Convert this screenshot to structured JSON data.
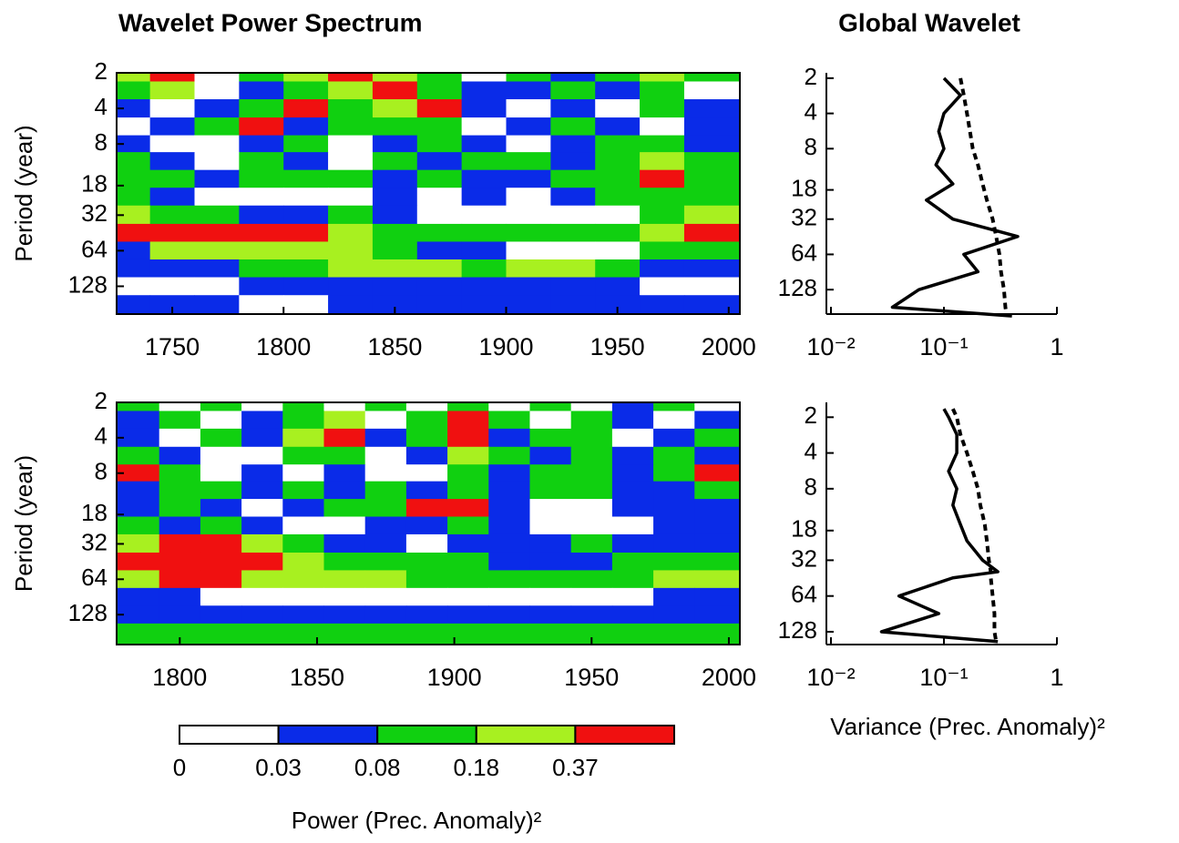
{
  "chart_data": [
    {
      "type": "heatmap",
      "title": "Wavelet Power Spectrum",
      "y_label": "Period (year)",
      "x": [
        1730,
        1750,
        1770,
        1790,
        1810,
        1830,
        1850,
        1870,
        1890,
        1910,
        1930,
        1950,
        1970,
        1990
      ],
      "y": [
        2,
        2.8,
        4,
        5.7,
        8,
        11,
        16,
        22,
        32,
        45,
        64,
        90,
        128,
        181
      ],
      "z": [
        [
          0.25,
          0.5,
          0.01,
          0.12,
          0.25,
          0.5,
          0.25,
          0.12,
          0.01,
          0.12,
          0.05,
          0.12,
          0.25,
          0.12
        ],
        [
          0.12,
          0.25,
          0.01,
          0.05,
          0.12,
          0.25,
          0.5,
          0.12,
          0.05,
          0.05,
          0.12,
          0.05,
          0.12,
          0.01
        ],
        [
          0.05,
          0.01,
          0.05,
          0.12,
          0.5,
          0.12,
          0.25,
          0.5,
          0.05,
          0.01,
          0.05,
          0.01,
          0.12,
          0.05
        ],
        [
          0.01,
          0.05,
          0.12,
          0.5,
          0.05,
          0.12,
          0.12,
          0.12,
          0.01,
          0.05,
          0.12,
          0.05,
          0.01,
          0.05
        ],
        [
          0.05,
          0.01,
          0.01,
          0.05,
          0.12,
          0.01,
          0.05,
          0.12,
          0.05,
          0.01,
          0.05,
          0.12,
          0.12,
          0.05
        ],
        [
          0.12,
          0.05,
          0.01,
          0.12,
          0.05,
          0.01,
          0.12,
          0.05,
          0.12,
          0.12,
          0.05,
          0.12,
          0.25,
          0.12
        ],
        [
          0.12,
          0.12,
          0.05,
          0.12,
          0.12,
          0.12,
          0.05,
          0.12,
          0.05,
          0.05,
          0.12,
          0.12,
          0.5,
          0.12
        ],
        [
          0.12,
          0.05,
          0.01,
          0.01,
          0.01,
          0.01,
          0.05,
          0.01,
          0.05,
          0.01,
          0.05,
          0.12,
          0.12,
          0.12
        ],
        [
          0.25,
          0.12,
          0.12,
          0.05,
          0.05,
          0.12,
          0.05,
          0.01,
          0.01,
          0.01,
          0.01,
          0.01,
          0.12,
          0.25
        ],
        [
          0.5,
          0.5,
          0.5,
          0.5,
          0.5,
          0.25,
          0.12,
          0.12,
          0.12,
          0.12,
          0.12,
          0.12,
          0.25,
          0.5
        ],
        [
          0.05,
          0.25,
          0.25,
          0.25,
          0.25,
          0.25,
          0.12,
          0.05,
          0.05,
          0.01,
          0.01,
          0.01,
          0.12,
          0.12
        ],
        [
          0.05,
          0.05,
          0.05,
          0.12,
          0.12,
          0.25,
          0.25,
          0.25,
          0.12,
          0.25,
          0.25,
          0.12,
          0.05,
          0.05
        ],
        [
          0.01,
          0.01,
          0.01,
          0.05,
          0.05,
          0.05,
          0.05,
          0.05,
          0.05,
          0.05,
          0.05,
          0.05,
          0.01,
          0.01
        ],
        [
          0.05,
          0.05,
          0.05,
          0.01,
          0.01,
          0.05,
          0.05,
          0.05,
          0.05,
          0.05,
          0.05,
          0.05,
          0.05,
          0.05
        ]
      ],
      "xlim": [
        1725,
        2005
      ],
      "xticks": [
        1750,
        1800,
        1850,
        1900,
        1950,
        2000
      ],
      "ylim": [
        2,
        220
      ],
      "yticks": [
        2,
        4,
        8,
        18,
        32,
        64,
        128
      ],
      "y_scale": "log"
    },
    {
      "type": "line",
      "title": "Global Wavelet",
      "y": [
        2,
        2.8,
        4,
        5.7,
        8,
        11,
        16,
        22,
        32,
        45,
        64,
        90,
        128,
        181,
        215
      ],
      "series": [
        {
          "color": "#000000",
          "dash": false,
          "values": [
            0.1,
            0.14,
            0.1,
            0.09,
            0.1,
            0.085,
            0.12,
            0.07,
            0.12,
            0.45,
            0.15,
            0.2,
            0.06,
            0.035,
            0.4
          ]
        },
        {
          "color": "#000000",
          "dash": true,
          "values": [
            0.14,
            0.15,
            0.16,
            0.17,
            0.18,
            0.2,
            0.22,
            0.24,
            0.27,
            0.29,
            0.31,
            0.32,
            0.34,
            0.35,
            0.36
          ]
        }
      ],
      "xlim": [
        0.01,
        1
      ],
      "xticks": [
        {
          "value": 0.01,
          "label": "10⁻²"
        },
        {
          "value": 0.1,
          "label": "10⁻¹"
        },
        1
      ],
      "x_scale": "log",
      "ylim": [
        1.8,
        207
      ],
      "yticks": [
        2,
        4,
        8,
        18,
        32,
        64,
        128
      ],
      "y_scale": "log"
    },
    {
      "type": "heatmap",
      "y_label": "Period (year)",
      "x": [
        1785,
        1800,
        1815,
        1830,
        1845,
        1860,
        1875,
        1890,
        1905,
        1920,
        1935,
        1950,
        1965,
        1980,
        1995
      ],
      "y": [
        2,
        2.8,
        4,
        5.7,
        8,
        11,
        16,
        22,
        32,
        45,
        64,
        90,
        128,
        181
      ],
      "z": [
        [
          0.12,
          0.01,
          0.12,
          0.01,
          0.12,
          0.01,
          0.12,
          0.01,
          0.12,
          0.01,
          0.12,
          0.01,
          0.05,
          0.12,
          0.01
        ],
        [
          0.05,
          0.12,
          0.01,
          0.05,
          0.12,
          0.25,
          0.01,
          0.12,
          0.5,
          0.12,
          0.01,
          0.12,
          0.05,
          0.01,
          0.05
        ],
        [
          0.05,
          0.01,
          0.12,
          0.05,
          0.25,
          0.5,
          0.05,
          0.12,
          0.5,
          0.05,
          0.12,
          0.12,
          0.01,
          0.05,
          0.12
        ],
        [
          0.12,
          0.05,
          0.01,
          0.01,
          0.12,
          0.12,
          0.01,
          0.05,
          0.25,
          0.12,
          0.05,
          0.12,
          0.05,
          0.12,
          0.05
        ],
        [
          0.5,
          0.12,
          0.01,
          0.05,
          0.01,
          0.05,
          0.01,
          0.01,
          0.12,
          0.05,
          0.12,
          0.12,
          0.05,
          0.12,
          0.5
        ],
        [
          0.05,
          0.12,
          0.12,
          0.05,
          0.12,
          0.05,
          0.12,
          0.05,
          0.12,
          0.05,
          0.12,
          0.12,
          0.05,
          0.05,
          0.12
        ],
        [
          0.05,
          0.12,
          0.05,
          0.01,
          0.05,
          0.12,
          0.12,
          0.5,
          0.5,
          0.05,
          0.01,
          0.01,
          0.05,
          0.05,
          0.05
        ],
        [
          0.12,
          0.05,
          0.12,
          0.05,
          0.01,
          0.01,
          0.05,
          0.05,
          0.12,
          0.05,
          0.01,
          0.01,
          0.01,
          0.05,
          0.05
        ],
        [
          0.25,
          0.5,
          0.5,
          0.25,
          0.12,
          0.05,
          0.05,
          0.01,
          0.05,
          0.05,
          0.05,
          0.12,
          0.05,
          0.05,
          0.05
        ],
        [
          0.5,
          0.5,
          0.5,
          0.5,
          0.25,
          0.12,
          0.12,
          0.12,
          0.12,
          0.05,
          0.05,
          0.05,
          0.12,
          0.12,
          0.12
        ],
        [
          0.25,
          0.5,
          0.5,
          0.25,
          0.25,
          0.25,
          0.25,
          0.12,
          0.12,
          0.12,
          0.12,
          0.12,
          0.12,
          0.25,
          0.25
        ],
        [
          0.05,
          0.05,
          0.01,
          0.01,
          0.01,
          0.01,
          0.01,
          0.01,
          0.01,
          0.01,
          0.01,
          0.01,
          0.01,
          0.05,
          0.05
        ],
        [
          0.05,
          0.05,
          0.05,
          0.05,
          0.05,
          0.05,
          0.05,
          0.05,
          0.05,
          0.05,
          0.05,
          0.05,
          0.05,
          0.05,
          0.05
        ],
        [
          0.12,
          0.12,
          0.12,
          0.12,
          0.12,
          0.12,
          0.12,
          0.12,
          0.12,
          0.12,
          0.12,
          0.12,
          0.12,
          0.12,
          0.12
        ]
      ],
      "xlim": [
        1777,
        2004
      ],
      "xticks": [
        1800,
        1850,
        1900,
        1950,
        2000
      ],
      "ylim": [
        2,
        230
      ],
      "yticks": [
        2,
        4,
        8,
        18,
        32,
        64,
        128
      ],
      "y_scale": "log"
    },
    {
      "type": "line",
      "x_label": "Variance (Prec. Anomaly)²",
      "y": [
        1.7,
        2,
        2.8,
        4,
        5.7,
        8,
        11,
        16,
        22,
        32,
        40,
        45,
        64,
        90,
        128,
        155
      ],
      "series": [
        {
          "color": "#000000",
          "dash": false,
          "values": [
            0.1,
            0.11,
            0.13,
            0.13,
            0.11,
            0.13,
            0.12,
            0.14,
            0.16,
            0.22,
            0.3,
            0.12,
            0.04,
            0.09,
            0.028,
            0.3
          ]
        },
        {
          "color": "#000000",
          "dash": true,
          "values": [
            0.12,
            0.13,
            0.14,
            0.16,
            0.18,
            0.2,
            0.21,
            0.23,
            0.24,
            0.25,
            0.26,
            0.26,
            0.27,
            0.28,
            0.28,
            0.29
          ]
        }
      ],
      "xlim": [
        0.01,
        1
      ],
      "xticks": [
        {
          "value": 0.01,
          "label": "10⁻²"
        },
        {
          "value": 0.1,
          "label": "10⁻¹"
        },
        1
      ],
      "x_scale": "log",
      "ylim": [
        1.5,
        164
      ],
      "yticks": [
        2,
        4,
        8,
        18,
        32,
        64,
        128
      ],
      "y_scale": "log"
    }
  ],
  "colorbar": {
    "label": "Power (Prec. Anomaly)²",
    "levels": [
      0,
      0.03,
      0.08,
      0.18,
      0.37
    ],
    "colors": [
      "#ffffff",
      "#0a2be8",
      "#10d010",
      "#a8f020",
      "#f01010"
    ]
  }
}
